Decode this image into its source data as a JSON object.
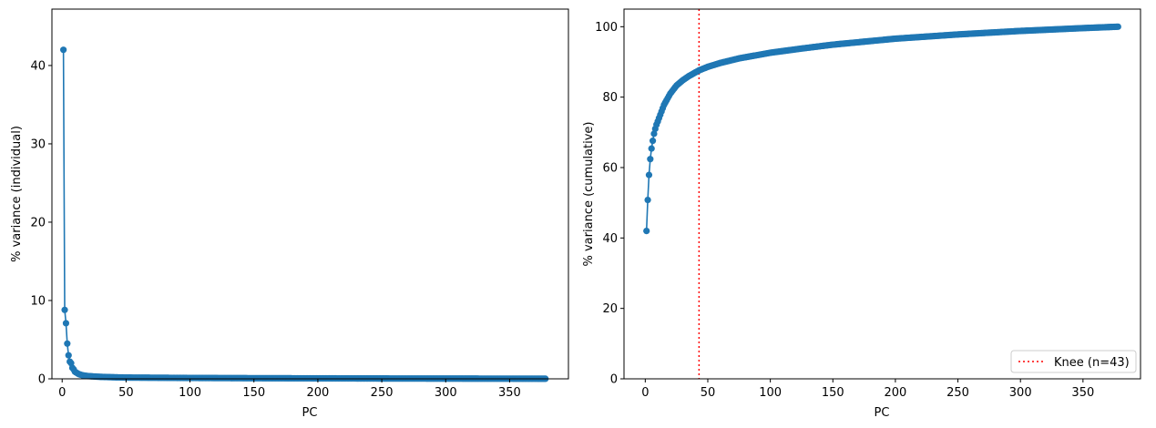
{
  "colors": {
    "series": "#1f77b4",
    "knee": "#ff0000",
    "axes": "#000000"
  },
  "chart_data": [
    {
      "type": "line",
      "marker": "circle",
      "xlabel": "PC",
      "ylabel": "% variance (individual)",
      "xlim": [
        -8,
        396
      ],
      "ylim": [
        0,
        47.2
      ],
      "xticks": [
        0,
        50,
        100,
        150,
        200,
        250,
        300,
        350
      ],
      "yticks": [
        0,
        10,
        20,
        30,
        40
      ],
      "grid": false,
      "n_points": 378,
      "series": [
        {
          "x": [
            1,
            2,
            3,
            4,
            5,
            6,
            7,
            8,
            9,
            10,
            11,
            12,
            13,
            14,
            15,
            16,
            17,
            18,
            19,
            20,
            25,
            30,
            40,
            50,
            100,
            150,
            200,
            250,
            300,
            350,
            378
          ],
          "values": [
            42.0,
            8.8,
            7.1,
            4.5,
            3.0,
            2.2,
            2.0,
            1.4,
            1.2,
            0.9,
            0.8,
            0.7,
            0.6,
            0.55,
            0.5,
            0.45,
            0.42,
            0.4,
            0.38,
            0.35,
            0.3,
            0.25,
            0.2,
            0.16,
            0.11,
            0.08,
            0.06,
            0.04,
            0.03,
            0.02,
            0.01
          ]
        }
      ]
    },
    {
      "type": "line",
      "marker": "circle",
      "xlabel": "PC",
      "ylabel": "% variance (cumulative)",
      "xlim": [
        -17,
        396
      ],
      "ylim": [
        0,
        105
      ],
      "xticks": [
        0,
        50,
        100,
        150,
        200,
        250,
        300,
        350
      ],
      "yticks": [
        0,
        20,
        40,
        60,
        80,
        100
      ],
      "grid": false,
      "legend_position": "lower-right",
      "n_points": 378,
      "series": [
        {
          "x": [
            1,
            2,
            3,
            4,
            5,
            6,
            7,
            8,
            9,
            10,
            12,
            15,
            20,
            25,
            30,
            35,
            43,
            50,
            60,
            75,
            100,
            125,
            150,
            200,
            250,
            300,
            350,
            378
          ],
          "values": [
            42.0,
            50.8,
            57.9,
            62.4,
            65.4,
            67.6,
            69.6,
            71.0,
            72.2,
            73.1,
            75.0,
            77.8,
            81.0,
            83.3,
            84.8,
            86.0,
            87.6,
            88.6,
            89.7,
            91.0,
            92.6,
            93.8,
            94.9,
            96.6,
            97.8,
            98.8,
            99.6,
            100.0
          ]
        }
      ],
      "knee": {
        "x": 43,
        "label": "Knee (n=43)"
      }
    }
  ]
}
